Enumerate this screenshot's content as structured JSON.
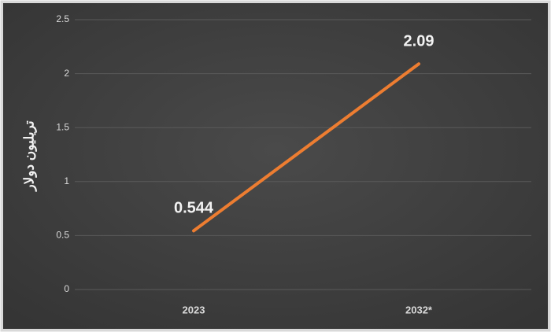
{
  "chart_data": {
    "type": "line",
    "y_label": "تريليون دولار",
    "categories": [
      "2023",
      "2032*"
    ],
    "values": [
      0.544,
      2.09
    ],
    "color": "#ed7d31",
    "ylim": [
      0,
      2.5
    ],
    "yticks": [
      0,
      0.5,
      1,
      1.5,
      2,
      2.5
    ],
    "grid": true
  }
}
